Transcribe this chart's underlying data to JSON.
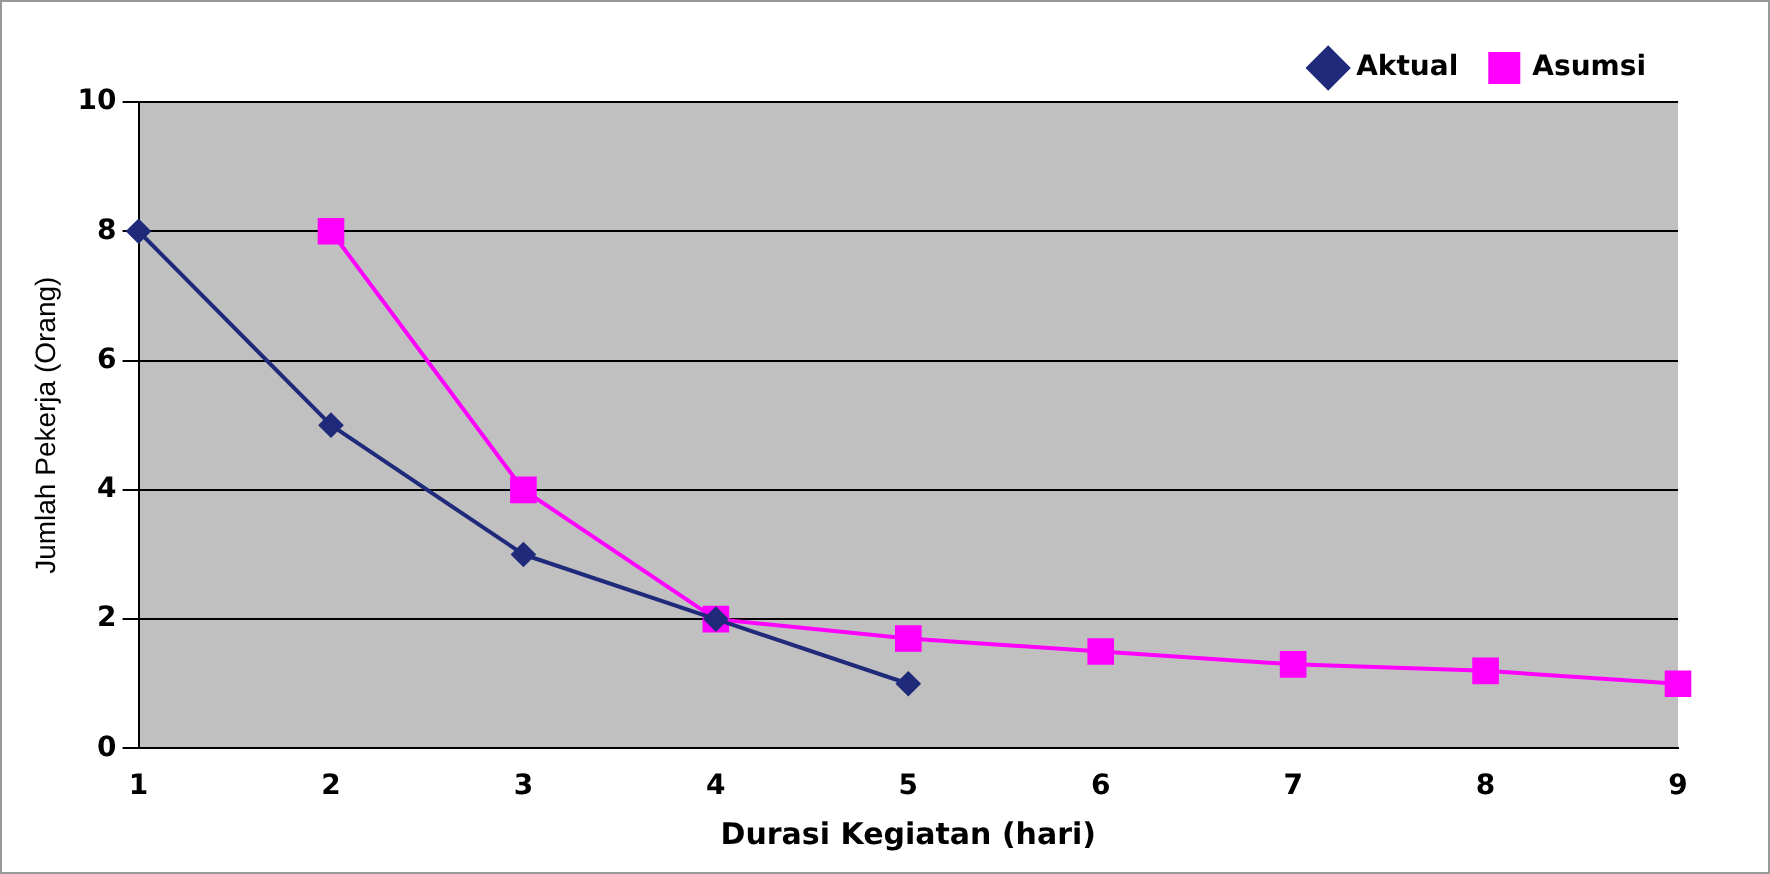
{
  "chart_data": {
    "type": "line",
    "xlabel": "Durasi Kegiatan (hari)",
    "ylabel": "Jumlah Pekerja (Orang)",
    "categories": [
      "1",
      "2",
      "3",
      "4",
      "5",
      "6",
      "7",
      "8",
      "9"
    ],
    "series": [
      {
        "name": "Aktual",
        "color": "#1f2a7a",
        "marker": "diamond",
        "values": [
          8,
          5,
          3,
          2,
          1,
          null,
          null,
          null,
          null
        ]
      },
      {
        "name": "Asumsi",
        "color": "#ff00ff",
        "marker": "square",
        "values": [
          null,
          8,
          4,
          2,
          1.7,
          1.5,
          1.3,
          1.2,
          1
        ]
      }
    ],
    "ylim": [
      0,
      10
    ],
    "yticks": [
      0,
      2,
      4,
      6,
      8,
      10
    ],
    "grid": "y",
    "legend": "top right",
    "line_style": "solid"
  }
}
